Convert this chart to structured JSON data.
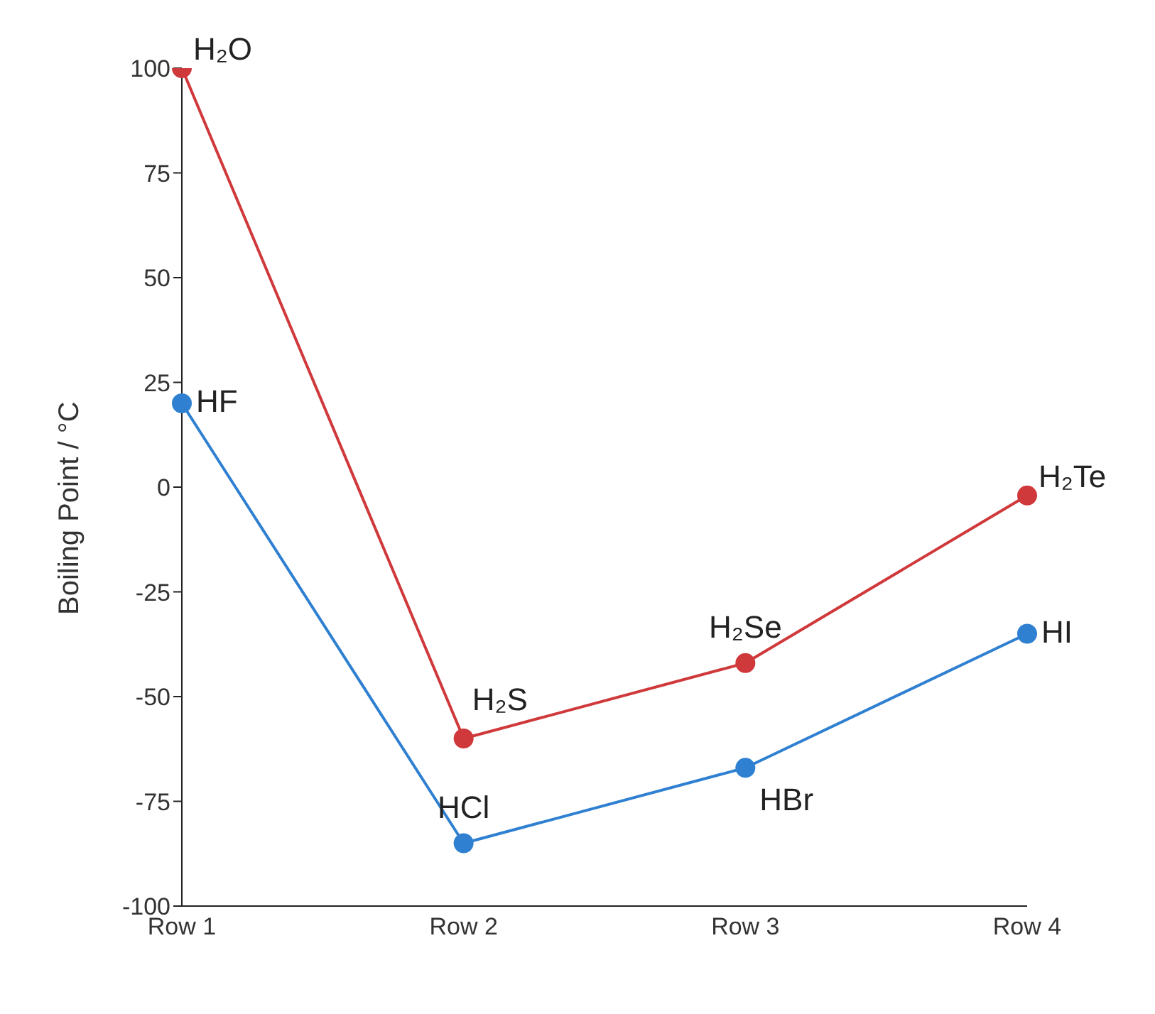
{
  "chart_data": {
    "type": "line",
    "ylabel": "Boiling Point  / °C",
    "categories": [
      "Row 1",
      "Row 2",
      "Row 3",
      "Row 4"
    ],
    "series": [
      {
        "color": "#d0393b",
        "values": [
          100,
          -60,
          -42,
          -2
        ]
      },
      {
        "color": "#2f80d1",
        "values": [
          20,
          -85,
          -67,
          -35
        ]
      }
    ],
    "ylim": [
      -100,
      100
    ],
    "yticks": [
      -100,
      -75,
      -50,
      -25,
      0,
      25,
      50,
      75,
      100
    ],
    "grid": false,
    "legend": false,
    "marker": "circle",
    "line_style": "solid",
    "annotations": [
      {
        "text": "H₂O",
        "x": "Row 1",
        "y": 100
      },
      {
        "text": "HF",
        "x": "Row 1",
        "y": 20
      },
      {
        "text": "H₂S",
        "x": "Row 2",
        "y": -60
      },
      {
        "text": "HCl",
        "x": "Row 2",
        "y": -85
      },
      {
        "text": "H₂Se",
        "x": "Row 3",
        "y": -42
      },
      {
        "text": "HBr",
        "x": "Row 3",
        "y": -67
      },
      {
        "text": "H₂Te",
        "x": "Row 4",
        "y": -2
      },
      {
        "text": "HI",
        "x": "Row 4",
        "y": -35
      }
    ]
  }
}
